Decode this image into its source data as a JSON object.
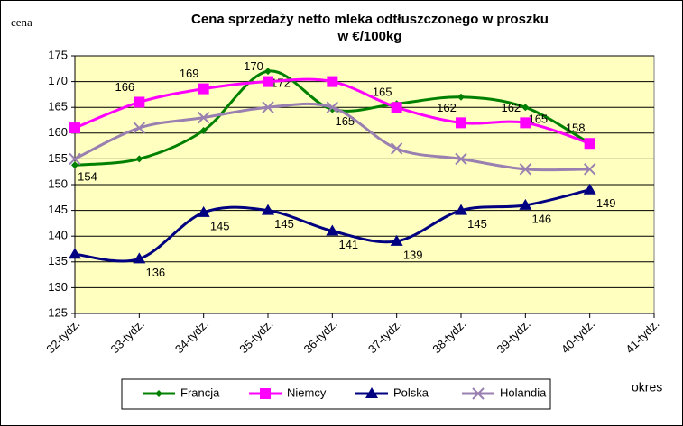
{
  "chart_data": {
    "type": "line",
    "title": "Cena sprzedaży netto mleka odtłuszczonego w proszku",
    "subtitle": "w €/100kg",
    "y_label": "cena",
    "x_label": "okres",
    "categories": [
      "32-tydz.",
      "33-tydz.",
      "34-tydz.",
      "35-tydz.",
      "36-tydz.",
      "37-tydz.",
      "38-tydz.",
      "39-tydz.",
      "40-tydz.",
      "41-tydz."
    ],
    "ylim": [
      125,
      175
    ],
    "yticks": [
      125,
      130,
      135,
      140,
      145,
      150,
      155,
      160,
      165,
      170,
      175
    ],
    "grid": true,
    "series": [
      {
        "name": "Francja",
        "color": "#008000",
        "marker": "diamond",
        "values": [
          153.8,
          155,
          160.5,
          172,
          164.6,
          165.7,
          167,
          165,
          158,
          null
        ],
        "value_labels": [
          "154",
          null,
          null,
          "172",
          "165",
          null,
          null,
          "165",
          null,
          null
        ]
      },
      {
        "name": "Niemcy",
        "color": "#FF00FF",
        "marker": "square",
        "values": [
          161,
          166,
          168.6,
          170,
          170,
          165,
          162,
          162,
          158,
          null
        ],
        "value_labels": [
          null,
          "166",
          "169",
          "170",
          null,
          "165",
          "162",
          "162",
          "158",
          null
        ]
      },
      {
        "name": "Polska",
        "color": "#000080",
        "marker": "triangle",
        "values": [
          136.5,
          135.6,
          144.6,
          145,
          141,
          139,
          145,
          146,
          149,
          null
        ],
        "value_labels": [
          null,
          "136",
          "145",
          "145",
          "141",
          "139",
          "145",
          "146",
          "149",
          null
        ]
      },
      {
        "name": "Holandia",
        "color": "#9980B0",
        "marker": "x",
        "values": [
          155,
          161,
          163,
          165,
          165,
          157,
          155,
          153,
          153,
          null
        ],
        "value_labels": [
          null,
          null,
          null,
          null,
          null,
          null,
          null,
          null,
          null,
          null
        ]
      }
    ]
  }
}
